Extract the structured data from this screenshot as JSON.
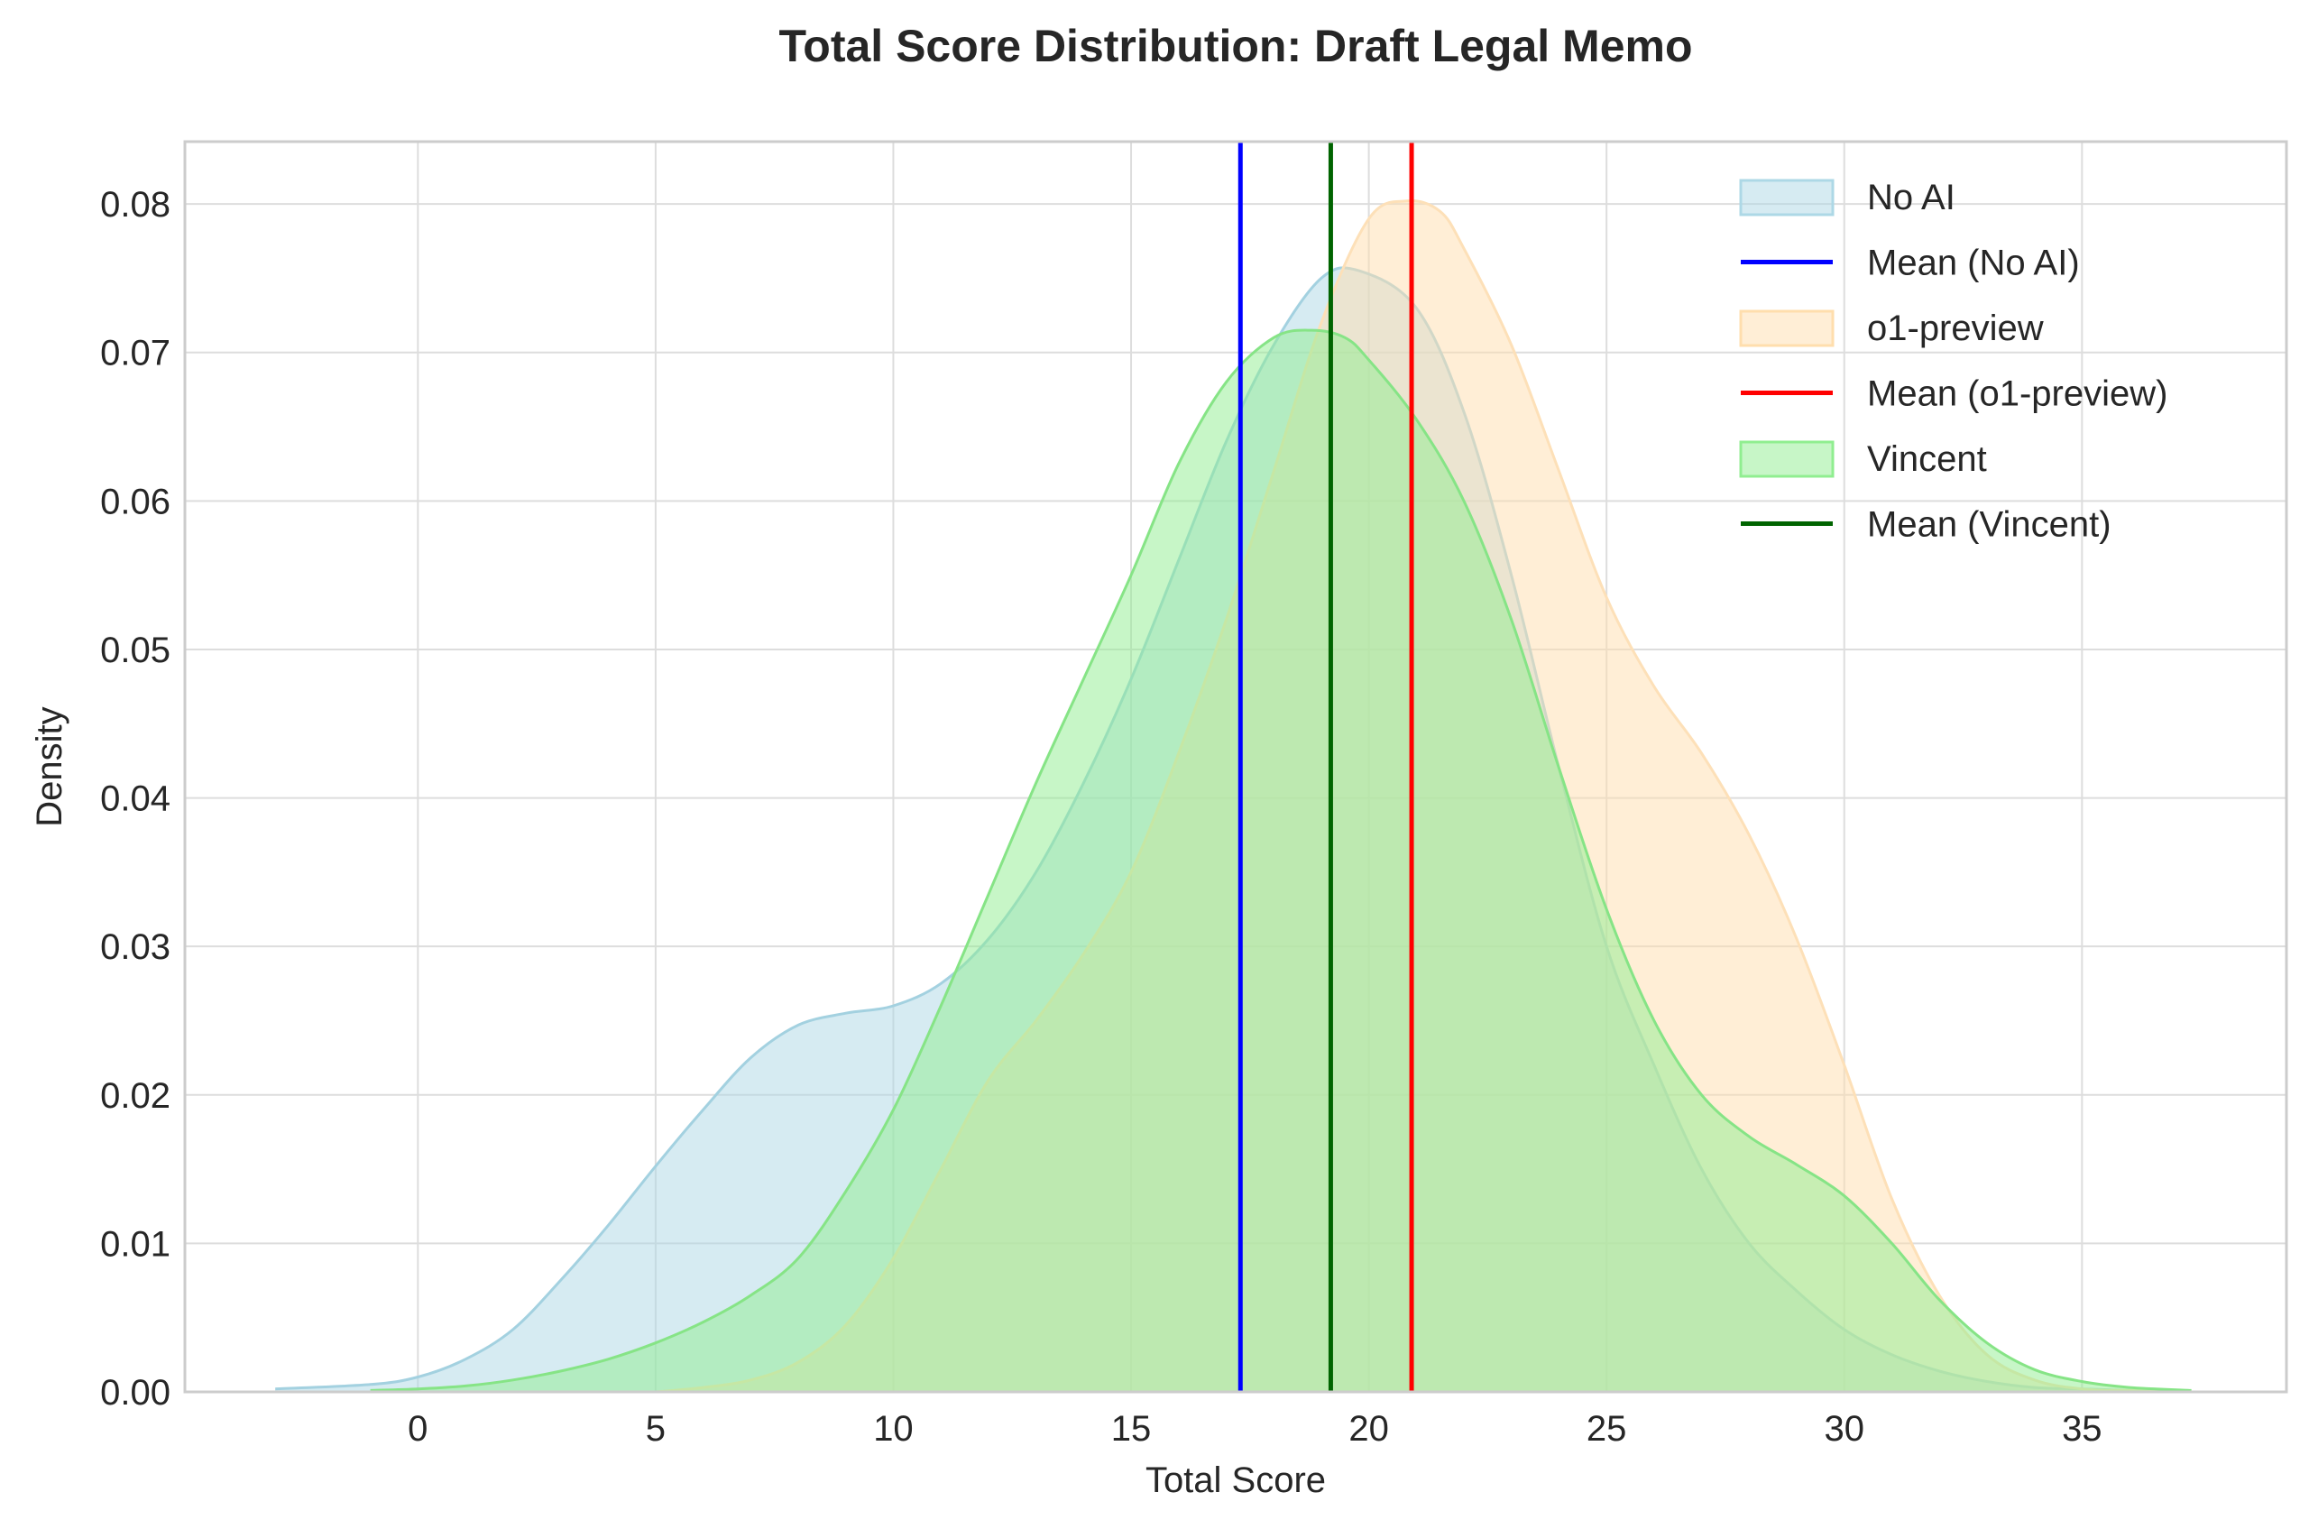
{
  "chart_data": {
    "type": "area",
    "title": "Total Score Distribution: Draft Legal Memo",
    "xlabel": "Total Score",
    "ylabel": "Density",
    "xlim": [
      -4.9,
      39.3
    ],
    "ylim": [
      0,
      0.0842
    ],
    "xticks": [
      0,
      5,
      10,
      15,
      20,
      25,
      30,
      35
    ],
    "yticks": [
      0.0,
      0.01,
      0.02,
      0.03,
      0.04,
      0.05,
      0.06,
      0.07,
      0.08
    ],
    "ytick_labels": [
      "0.00",
      "0.01",
      "0.02",
      "0.03",
      "0.04",
      "0.05",
      "0.06",
      "0.07",
      "0.08"
    ],
    "grid": true,
    "legend_position": "top-right",
    "series": [
      {
        "name": "No AI",
        "fill": "#add8e6",
        "edge": "#a3d1e0",
        "x": [
          -3,
          -1,
          0,
          1,
          2,
          3,
          4,
          5,
          6,
          7,
          8,
          9,
          10,
          11,
          12,
          13,
          14,
          15,
          16,
          17,
          18,
          19,
          19.8,
          21,
          22,
          23,
          24,
          25,
          26,
          27,
          28,
          29,
          30,
          31,
          32,
          33,
          34,
          35,
          36,
          37.3
        ],
        "y": [
          0.0002,
          0.0005,
          0.001,
          0.0022,
          0.0042,
          0.0075,
          0.0112,
          0.0152,
          0.019,
          0.0225,
          0.0247,
          0.0255,
          0.026,
          0.0275,
          0.0305,
          0.035,
          0.041,
          0.048,
          0.056,
          0.064,
          0.0705,
          0.075,
          0.0755,
          0.073,
          0.066,
          0.055,
          0.042,
          0.03,
          0.022,
          0.015,
          0.01,
          0.0068,
          0.0042,
          0.0025,
          0.0014,
          0.0007,
          0.0003,
          0.0002,
          0.0001,
          0.0
        ]
      },
      {
        "name": "o1-preview",
        "fill": "#ffdead",
        "edge": "#fde0b8",
        "x": [
          5,
          6,
          7,
          8,
          9,
          10,
          11,
          12,
          13,
          14,
          15,
          16,
          17,
          18,
          19,
          20,
          20.8,
          21.5,
          22,
          23,
          24,
          25,
          26,
          27,
          28,
          29,
          30,
          31,
          32,
          33,
          34,
          35,
          36,
          37.3
        ],
        "y": [
          0.0,
          0.0003,
          0.0008,
          0.002,
          0.0045,
          0.009,
          0.015,
          0.021,
          0.025,
          0.0295,
          0.035,
          0.043,
          0.052,
          0.062,
          0.072,
          0.079,
          0.0802,
          0.0795,
          0.077,
          0.0705,
          0.062,
          0.0535,
          0.0475,
          0.043,
          0.0375,
          0.0305,
          0.022,
          0.013,
          0.0065,
          0.0025,
          0.0008,
          0.0002,
          0.0001,
          0.0
        ]
      },
      {
        "name": "Vincent",
        "fill": "#90ee90",
        "edge": "#86e486",
        "x": [
          -1,
          0,
          1,
          2,
          3,
          4,
          5,
          6,
          7,
          8,
          9,
          10,
          11,
          12,
          13,
          14,
          15,
          16,
          17,
          18,
          18.8,
          19.5,
          20,
          21,
          22,
          23,
          24,
          25,
          26,
          27,
          28,
          29,
          30,
          31,
          32,
          33,
          34,
          35,
          36,
          37.3
        ],
        "y": [
          0.0001,
          0.0002,
          0.0004,
          0.0008,
          0.0014,
          0.0022,
          0.0033,
          0.0047,
          0.0065,
          0.009,
          0.0135,
          0.019,
          0.026,
          0.0335,
          0.041,
          0.048,
          0.055,
          0.0625,
          0.068,
          0.071,
          0.0715,
          0.071,
          0.0695,
          0.0655,
          0.06,
          0.052,
          0.042,
          0.0325,
          0.025,
          0.02,
          0.0172,
          0.0153,
          0.0132,
          0.01,
          0.0062,
          0.0033,
          0.0015,
          0.0007,
          0.0003,
          0.0001
        ]
      }
    ],
    "means": [
      {
        "name": "Mean (No AI)",
        "value": 17.3,
        "color": "#0000ff"
      },
      {
        "name": "Mean (o1-preview)",
        "value": 20.9,
        "color": "#ff0000"
      },
      {
        "name": "Mean (Vincent)",
        "value": 19.2,
        "color": "#006400"
      }
    ],
    "legend": [
      {
        "label": "No AI",
        "kind": "patch",
        "color": "#add8e6"
      },
      {
        "label": "Mean (No AI)",
        "kind": "line",
        "color": "#0000ff"
      },
      {
        "label": "o1-preview",
        "kind": "patch",
        "color": "#ffdead"
      },
      {
        "label": "Mean (o1-preview)",
        "kind": "line",
        "color": "#ff0000"
      },
      {
        "label": "Vincent",
        "kind": "patch",
        "color": "#90ee90"
      },
      {
        "label": "Mean (Vincent)",
        "kind": "line",
        "color": "#006400"
      }
    ]
  }
}
